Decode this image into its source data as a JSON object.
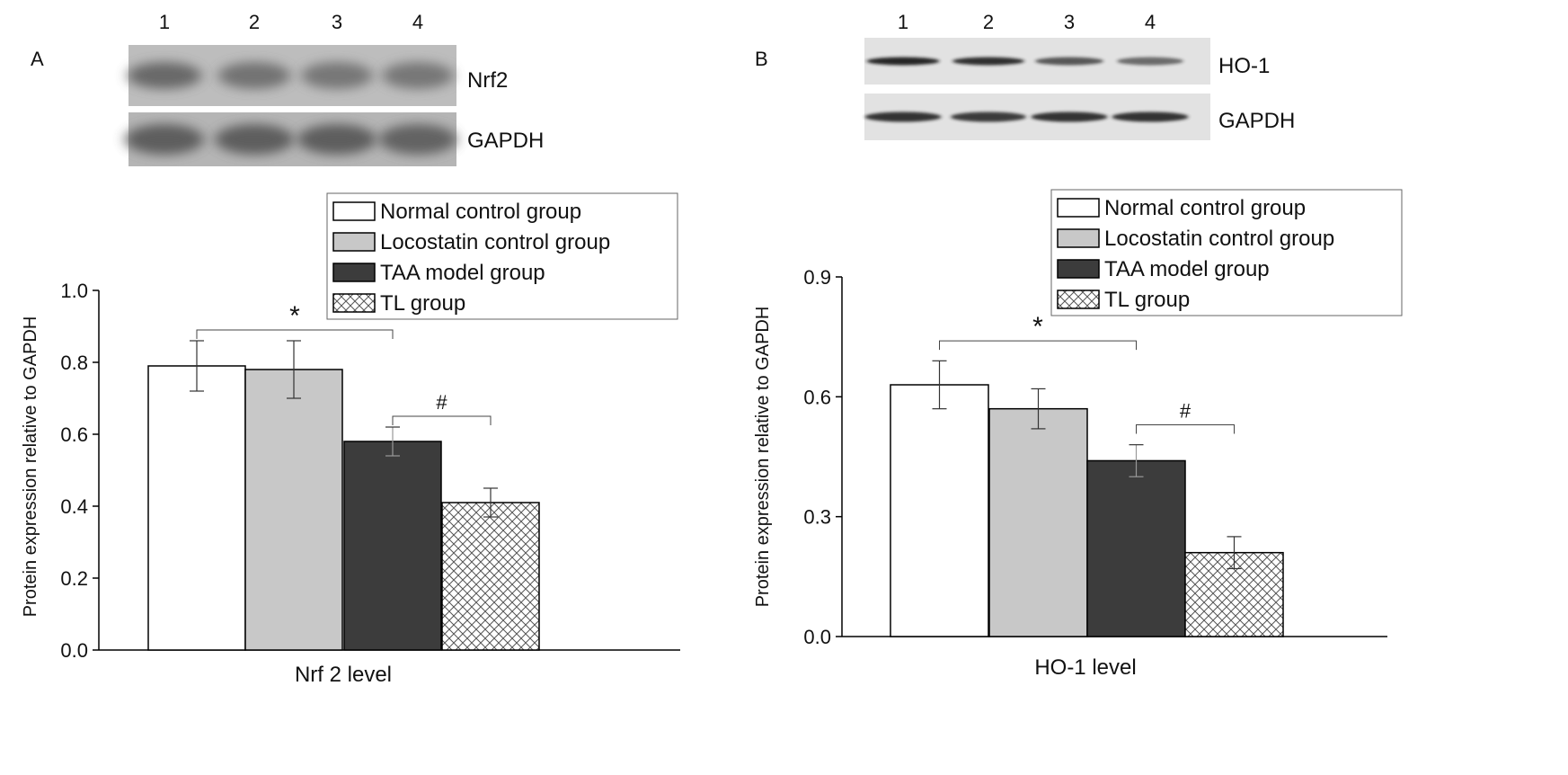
{
  "panels": [
    {
      "id": "A",
      "panel_label": "A",
      "lanes": [
        "1",
        "2",
        "3",
        "4"
      ],
      "blots": [
        {
          "label": "Nrf2",
          "bg": "#bdbdbd",
          "band": "#5a5a5a",
          "intensity": [
            0.85,
            0.75,
            0.7,
            0.7
          ],
          "style": "smear"
        },
        {
          "label": "GAPDH",
          "bg": "#b5b5b5",
          "band": "#555555",
          "intensity": [
            0.9,
            0.9,
            0.9,
            0.85
          ],
          "style": "smear"
        }
      ]
    },
    {
      "id": "B",
      "panel_label": "B",
      "lanes": [
        "1",
        "2",
        "3",
        "4"
      ],
      "blots": [
        {
          "label": "HO-1",
          "bg": "#e2e2e2",
          "band": "#1e1e1e",
          "intensity": [
            0.95,
            0.9,
            0.7,
            0.6
          ],
          "style": "sharp"
        },
        {
          "label": "GAPDH",
          "bg": "#e2e2e2",
          "band": "#2a2a2a",
          "intensity": [
            0.95,
            0.9,
            0.95,
            0.95
          ],
          "style": "sharp"
        }
      ]
    }
  ],
  "legend_entries": [
    {
      "label": "Normal control group",
      "fill": "#ffffff",
      "pattern": "none"
    },
    {
      "label": "Locostatin control group",
      "fill": "#c8c8c8",
      "pattern": "none"
    },
    {
      "label": "TAA model group",
      "fill": "#3c3c3c",
      "pattern": "none"
    },
    {
      "label": "TL group",
      "fill": "#ffffff",
      "pattern": "crosshatch"
    }
  ],
  "chart_data": [
    {
      "panel": "A",
      "type": "bar",
      "ylabel": "Protein expression relative to GAPDH",
      "xlabel": "Nrf 2 level",
      "ylim": [
        0.0,
        1.0
      ],
      "yticks": [
        "0.0",
        "0.2",
        "0.4",
        "0.6",
        "0.8",
        "1.0"
      ],
      "ytick_values": [
        0.0,
        0.2,
        0.4,
        0.6,
        0.8,
        1.0
      ],
      "grid": false,
      "series": [
        {
          "name": "Normal control group",
          "value": 0.79,
          "error": 0.07
        },
        {
          "name": "Locostatin control group",
          "value": 0.78,
          "error": 0.08
        },
        {
          "name": "TAA model group",
          "value": 0.58,
          "error": 0.04
        },
        {
          "name": "TL group",
          "value": 0.41,
          "error": 0.04
        }
      ],
      "annotations": [
        {
          "symbol": "*",
          "from": 0,
          "to": 2,
          "y": 0.89
        },
        {
          "symbol": "#",
          "from": 2,
          "to": 3,
          "y": 0.65
        }
      ]
    },
    {
      "panel": "B",
      "type": "bar",
      "ylabel": "Protein expression relative to GAPDH",
      "xlabel": "HO-1 level",
      "ylim": [
        0.0,
        0.9
      ],
      "yticks": [
        "0.0",
        "0.3",
        "0.6",
        "0.9"
      ],
      "ytick_values": [
        0.0,
        0.3,
        0.6,
        0.9
      ],
      "grid": false,
      "series": [
        {
          "name": "Normal control group",
          "value": 0.63,
          "error": 0.06
        },
        {
          "name": "Locostatin control group",
          "value": 0.57,
          "error": 0.05
        },
        {
          "name": "TAA model group",
          "value": 0.44,
          "error": 0.04
        },
        {
          "name": "TL group",
          "value": 0.21,
          "error": 0.04
        }
      ],
      "annotations": [
        {
          "symbol": "*",
          "from": 0,
          "to": 2,
          "y": 0.74
        },
        {
          "symbol": "#",
          "from": 2,
          "to": 3,
          "y": 0.53
        }
      ]
    }
  ]
}
